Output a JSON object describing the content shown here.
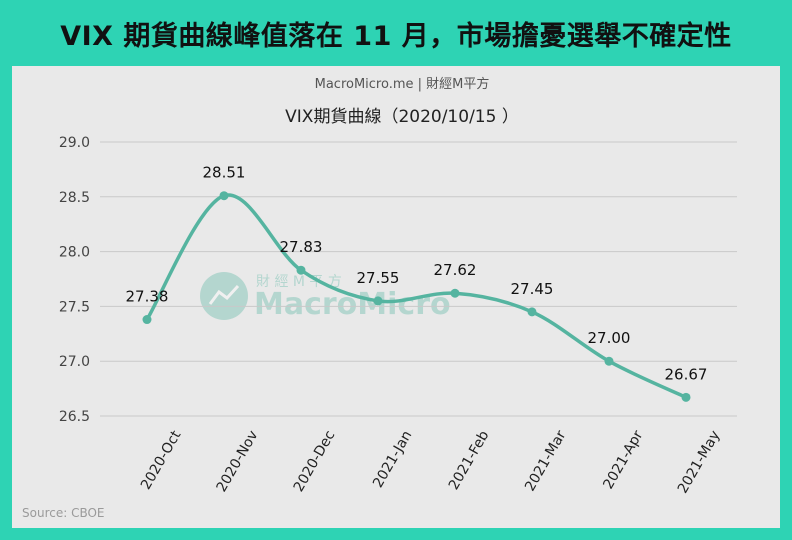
{
  "headline": "VIX 期貨曲線峰值落在 11 月，市場擔憂選舉不確定性",
  "source": "Source: CBOE",
  "brand_line": "MacroMicro.me | 財經M平方",
  "watermark": {
    "cn": "財 經 M 平 方",
    "en": "MacroMicro"
  },
  "colors": {
    "background": "#2ed3b4",
    "panel": "#e9e9e9",
    "line": "#55b4a0",
    "marker": "#55b4a0",
    "text": "#111111"
  },
  "chart_data": {
    "type": "line",
    "title": "VIX期貨曲線（2020/10/15 ）",
    "categories": [
      "2020-Oct",
      "2020-Nov",
      "2020-Dec",
      "2021-Jan",
      "2021-Feb",
      "2021-Mar",
      "2021-Apr",
      "2021-May"
    ],
    "values": [
      27.38,
      28.51,
      27.83,
      27.55,
      27.62,
      27.45,
      27.0,
      26.67
    ],
    "data_labels": [
      "27.38",
      "28.51",
      "27.83",
      "27.55",
      "27.62",
      "27.45",
      "27.00",
      "26.67"
    ],
    "yticks": [
      "29.0",
      "28.5",
      "28.0",
      "27.5",
      "27.0",
      "26.5"
    ],
    "ylim": [
      26.5,
      29.0
    ],
    "grid": true,
    "legend": "none",
    "smooth": true
  }
}
